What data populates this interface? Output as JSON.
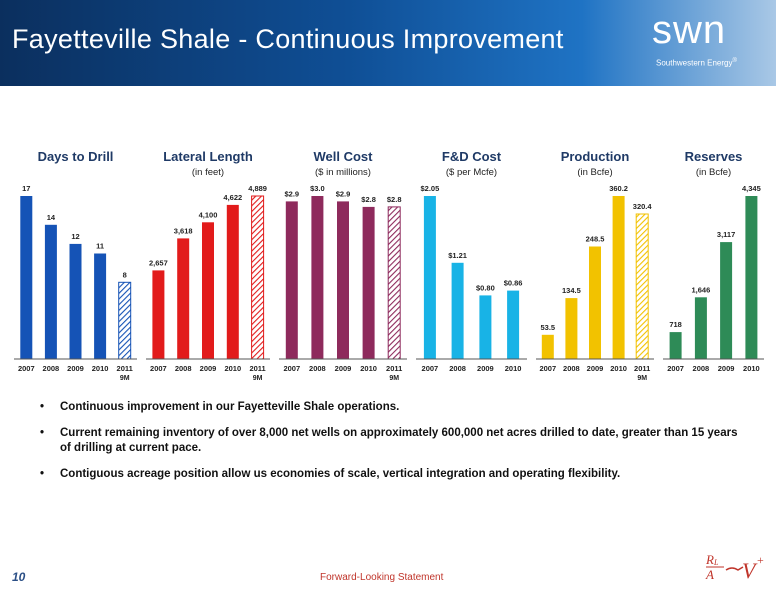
{
  "title": "Fayetteville Shale - Continuous Improvement",
  "logo": {
    "name": "swn",
    "subtitle": "Southwestern Energy",
    "reg": "®"
  },
  "colors": {
    "blue": "#1553b6",
    "red": "#e21b1b",
    "purple": "#8e2a5c",
    "cyan": "#18b3e6",
    "yellow": "#f2c200",
    "green": "#2e8b57"
  },
  "chart_data": [
    {
      "type": "bar",
      "title": "Days to Drill",
      "subtitle": "",
      "categories": [
        "2007",
        "2008",
        "2009",
        "2010",
        "2011"
      ],
      "sub": [
        "",
        "",
        "",
        "",
        "9M"
      ],
      "values": [
        17,
        14,
        12,
        11,
        8
      ],
      "labels": [
        "17",
        "14",
        "12",
        "11",
        "8"
      ],
      "color": "#1553b6",
      "hatched_last": true,
      "ymax": 17
    },
    {
      "type": "bar",
      "title": "Lateral Length",
      "subtitle": "(in feet)",
      "categories": [
        "2007",
        "2008",
        "2009",
        "2010",
        "2011"
      ],
      "sub": [
        "",
        "",
        "",
        "",
        "9M"
      ],
      "values": [
        2657,
        3618,
        4100,
        4622,
        4889
      ],
      "labels": [
        "2,657",
        "3,618",
        "4,100",
        "4,622",
        "4,889"
      ],
      "color": "#e21b1b",
      "hatched_last": true,
      "ymax": 4889
    },
    {
      "type": "bar",
      "title": "Well Cost",
      "subtitle": "($ in millions)",
      "categories": [
        "2007",
        "2008",
        "2009",
        "2010",
        "2011"
      ],
      "sub": [
        "",
        "",
        "",
        "",
        "9M"
      ],
      "values": [
        2.9,
        3.0,
        2.9,
        2.8,
        2.8
      ],
      "labels": [
        "$2.9",
        "$3.0",
        "$2.9",
        "$2.8",
        "$2.8"
      ],
      "color": "#8e2a5c",
      "hatched_last": true,
      "ymax": 3.0
    },
    {
      "type": "bar",
      "title": "F&D Cost",
      "subtitle": "($ per Mcfe)",
      "categories": [
        "2007",
        "2008",
        "2009",
        "2010"
      ],
      "sub": [
        "",
        "",
        "",
        ""
      ],
      "values": [
        2.05,
        1.21,
        0.8,
        0.86
      ],
      "labels": [
        "$2.05",
        "$1.21",
        "$0.80",
        "$0.86"
      ],
      "color": "#18b3e6",
      "hatched_last": false,
      "ymax": 2.05
    },
    {
      "type": "bar",
      "title": "Production",
      "subtitle": "(in Bcfe)",
      "categories": [
        "2007",
        "2008",
        "2009",
        "2010",
        "2011"
      ],
      "sub": [
        "",
        "",
        "",
        "",
        "9M"
      ],
      "values": [
        53.5,
        134.5,
        248.5,
        360.2,
        320.4
      ],
      "labels": [
        "53.5",
        "134.5",
        "248.5",
        "360.2",
        "320.4"
      ],
      "color": "#f2c200",
      "hatched_last": true,
      "ymax": 360.2
    },
    {
      "type": "bar",
      "title": "Reserves",
      "subtitle": "(in Bcfe)",
      "categories": [
        "2007",
        "2008",
        "2009",
        "2010"
      ],
      "sub": [
        "",
        "",
        "",
        ""
      ],
      "values": [
        718,
        1646,
        3117,
        4345
      ],
      "labels": [
        "718",
        "1,646",
        "3,117",
        "4,345"
      ],
      "color": "#2e8b57",
      "hatched_last": false,
      "ymax": 4345
    }
  ],
  "bullets": [
    "Continuous improvement in our Fayetteville Shale operations.",
    "Current remaining inventory of over 8,000 net wells on approximately 600,000 net acres drilled to date, greater than 15 years of drilling at current pace.",
    "Contiguous acreage position allow us economies of scale, vertical integration and operating flexibility."
  ],
  "bullet_char": "•",
  "footer": {
    "page_number": "10",
    "link_text": "Forward-Looking Statement"
  }
}
